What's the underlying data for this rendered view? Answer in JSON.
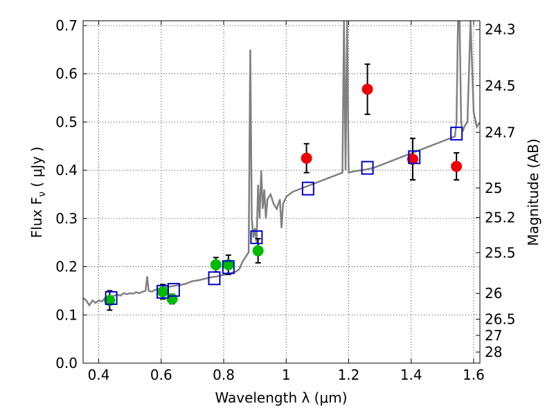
{
  "chart_data": {
    "type": "scatter",
    "xlabel": "Wavelength  λ (μm)",
    "ylabel": "Flux  F",
    "ylabel_sub": "ν",
    "ylabel_unit": "  ( μJy )",
    "y2label": "Magnitude (AB)",
    "xlim": [
      0.35,
      1.62
    ],
    "ylim": [
      0.0,
      0.71
    ],
    "grid": true,
    "x_ticks": [
      {
        "value": 0.4,
        "label": "0.4"
      },
      {
        "value": 0.6,
        "label": "0.6"
      },
      {
        "value": 0.8,
        "label": "0.8"
      },
      {
        "value": 1.0,
        "label": "1"
      },
      {
        "value": 1.2,
        "label": "1.2"
      },
      {
        "value": 1.4,
        "label": "1.4"
      },
      {
        "value": 1.6,
        "label": "1.6"
      }
    ],
    "y_ticks": [
      {
        "value": 0.0,
        "label": "0.0"
      },
      {
        "value": 0.1,
        "label": "0.1"
      },
      {
        "value": 0.2,
        "label": "0.2"
      },
      {
        "value": 0.3,
        "label": "0.3"
      },
      {
        "value": 0.4,
        "label": "0.4"
      },
      {
        "value": 0.5,
        "label": "0.5"
      },
      {
        "value": 0.6,
        "label": "0.6"
      },
      {
        "value": 0.7,
        "label": "0.7"
      }
    ],
    "y2_ticks": [
      {
        "mag": 24.3,
        "label": "24.3"
      },
      {
        "mag": 24.5,
        "label": "24.5"
      },
      {
        "mag": 24.7,
        "label": "24.7"
      },
      {
        "mag": 25,
        "label": "25"
      },
      {
        "mag": 25.2,
        "label": "25.2"
      },
      {
        "mag": 25.5,
        "label": "25.5"
      },
      {
        "mag": 26,
        "label": "26"
      },
      {
        "mag": 26.5,
        "label": "26.5"
      },
      {
        "mag": 27,
        "label": "27"
      },
      {
        "mag": 28,
        "label": "28"
      }
    ],
    "series": [
      {
        "kind": "line",
        "color": "#808080",
        "x": [
          0.35,
          0.36,
          0.37,
          0.38,
          0.39,
          0.4,
          0.41,
          0.42,
          0.43,
          0.44,
          0.45,
          0.46,
          0.47,
          0.48,
          0.49,
          0.5,
          0.51,
          0.52,
          0.53,
          0.54,
          0.55,
          0.555,
          0.56,
          0.57,
          0.58,
          0.6,
          0.62,
          0.64,
          0.66,
          0.68,
          0.7,
          0.72,
          0.74,
          0.76,
          0.78,
          0.8,
          0.82,
          0.84,
          0.85,
          0.86,
          0.87,
          0.88,
          0.885,
          0.89,
          0.895,
          0.9,
          0.905,
          0.91,
          0.915,
          0.92,
          0.925,
          0.93,
          0.935,
          0.94,
          0.95,
          0.96,
          0.97,
          0.98,
          0.985,
          0.99,
          1.0,
          1.02,
          1.04,
          1.06,
          1.08,
          1.1,
          1.12,
          1.14,
          1.16,
          1.18,
          1.185,
          1.19,
          1.195,
          1.2,
          1.22,
          1.24,
          1.26,
          1.28,
          1.3,
          1.32,
          1.34,
          1.36,
          1.38,
          1.4,
          1.42,
          1.44,
          1.46,
          1.48,
          1.5,
          1.52,
          1.54,
          1.545,
          1.55,
          1.555,
          1.56,
          1.565,
          1.57,
          1.58,
          1.59,
          1.6,
          1.61,
          1.62
        ],
        "y": [
          0.135,
          0.13,
          0.12,
          0.13,
          0.125,
          0.13,
          0.128,
          0.135,
          0.132,
          0.138,
          0.14,
          0.142,
          0.14,
          0.145,
          0.143,
          0.145,
          0.144,
          0.147,
          0.145,
          0.148,
          0.15,
          0.18,
          0.15,
          0.148,
          0.152,
          0.155,
          0.158,
          0.16,
          0.162,
          0.165,
          0.17,
          0.172,
          0.175,
          0.178,
          0.18,
          0.183,
          0.186,
          0.19,
          0.195,
          0.21,
          0.22,
          0.23,
          0.65,
          0.3,
          0.26,
          0.28,
          0.25,
          0.37,
          0.3,
          0.4,
          0.32,
          0.36,
          0.3,
          0.34,
          0.35,
          0.33,
          0.32,
          0.34,
          0.28,
          0.33,
          0.345,
          0.355,
          0.36,
          0.365,
          0.37,
          0.375,
          0.38,
          0.385,
          0.39,
          0.395,
          0.71,
          0.4,
          0.71,
          0.395,
          0.398,
          0.4,
          0.402,
          0.405,
          0.41,
          0.415,
          0.42,
          0.425,
          0.43,
          0.435,
          0.44,
          0.445,
          0.45,
          0.455,
          0.46,
          0.465,
          0.47,
          0.5,
          0.71,
          0.71,
          0.5,
          0.48,
          0.49,
          0.5,
          0.71,
          0.52,
          0.49,
          0.5
        ]
      },
      {
        "kind": "markers",
        "marker": "circle",
        "color": "#00bb00",
        "x": [
          0.435,
          0.605,
          0.635,
          0.775,
          0.815,
          0.91
        ],
        "y": [
          0.13,
          0.148,
          0.133,
          0.204,
          0.204,
          0.233
        ],
        "err": [
          0.02,
          0.015,
          0.01,
          0.015,
          0.02,
          0.025
        ]
      },
      {
        "kind": "markers",
        "marker": "circle",
        "color": "#ee0000",
        "x": [
          1.065,
          1.26,
          1.405,
          1.545
        ],
        "y": [
          0.425,
          0.568,
          0.423,
          0.408
        ],
        "err": [
          0.03,
          0.052,
          0.043,
          0.028
        ]
      },
      {
        "kind": "markers",
        "marker": "open-square",
        "color": "#0000cc",
        "x": [
          0.44,
          0.605,
          0.64,
          0.77,
          0.815,
          0.905,
          1.07,
          1.26,
          1.41,
          1.545
        ],
        "y": [
          0.135,
          0.148,
          0.152,
          0.176,
          0.199,
          0.261,
          0.362,
          0.405,
          0.427,
          0.476
        ]
      }
    ]
  }
}
